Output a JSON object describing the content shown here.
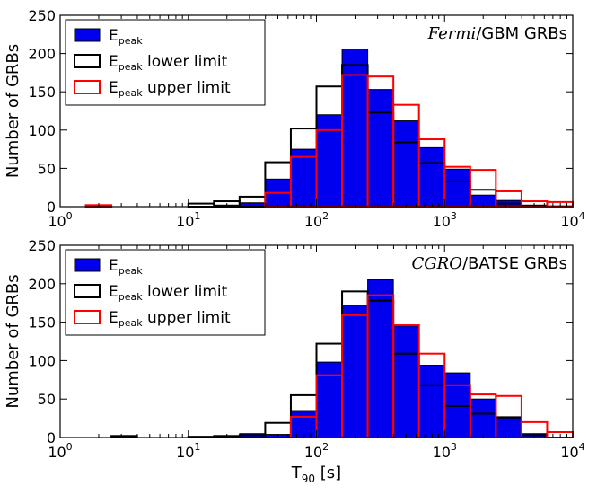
{
  "chart_data": [
    {
      "type": "bar",
      "title": "",
      "annotation": {
        "italic": "Fermi",
        "rest": "/GBM GRBs"
      },
      "xlabel": "",
      "ylabel": "Number of GRBs",
      "xscale": "log",
      "xlim": [
        1,
        10000
      ],
      "ylim": [
        0,
        250
      ],
      "x_ticks": [
        {
          "base": "10",
          "exp": "0"
        },
        {
          "base": "10",
          "exp": "1"
        },
        {
          "base": "10",
          "exp": "2"
        },
        {
          "base": "10",
          "exp": "3"
        },
        {
          "base": "10",
          "exp": "4"
        }
      ],
      "y_ticks": [
        "0",
        "50",
        "100",
        "150",
        "200",
        "250"
      ],
      "bin_edges_log10": [
        0,
        0.2,
        0.4,
        0.6,
        0.8,
        1.0,
        1.2,
        1.4,
        1.6,
        1.8,
        2.0,
        2.2,
        2.4,
        2.6,
        2.8,
        3.0,
        3.2,
        3.4,
        3.6,
        3.8,
        4.0
      ],
      "legend": {
        "position": "upper left",
        "entries": [
          {
            "main": "E",
            "sub": "peak",
            "rest": ""
          },
          {
            "main": "E",
            "sub": "peak",
            "rest": " lower limit"
          },
          {
            "main": "E",
            "sub": "peak",
            "rest": " upper limit"
          }
        ]
      },
      "series": [
        {
          "name": "Epeak",
          "style": "filled",
          "color": "#0000ee",
          "values": [
            0,
            0,
            0,
            0,
            0,
            0,
            2,
            5,
            36,
            75,
            120,
            206,
            153,
            112,
            77,
            49,
            15,
            8,
            2,
            1
          ]
        },
        {
          "name": "Epeak lower limit",
          "style": "step",
          "color": "#000000",
          "values": [
            0,
            0,
            0,
            0,
            0,
            4,
            7,
            13,
            58,
            102,
            157,
            185,
            123,
            84,
            57,
            33,
            22,
            4,
            0,
            0
          ]
        },
        {
          "name": "Epeak upper limit",
          "style": "step",
          "color": "#ff0000",
          "values": [
            0,
            2,
            0,
            0,
            0,
            0,
            0,
            0,
            18,
            65,
            100,
            172,
            170,
            133,
            88,
            52,
            48,
            20,
            7,
            6
          ]
        }
      ]
    },
    {
      "type": "bar",
      "title": "",
      "annotation": {
        "italic": "CGRO",
        "rest": "/BATSE GRBs"
      },
      "xlabel": {
        "main": "T",
        "sub": "90",
        "rest": " [s]"
      },
      "ylabel": "Number of GRBs",
      "xscale": "log",
      "xlim": [
        1,
        10000
      ],
      "ylim": [
        0,
        250
      ],
      "x_ticks": [
        {
          "base": "10",
          "exp": "0"
        },
        {
          "base": "10",
          "exp": "1"
        },
        {
          "base": "10",
          "exp": "2"
        },
        {
          "base": "10",
          "exp": "3"
        },
        {
          "base": "10",
          "exp": "4"
        }
      ],
      "y_ticks": [
        "0",
        "50",
        "100",
        "150",
        "200",
        "250"
      ],
      "bin_edges_log10": [
        0,
        0.2,
        0.4,
        0.6,
        0.8,
        1.0,
        1.2,
        1.4,
        1.6,
        1.8,
        2.0,
        2.2,
        2.4,
        2.6,
        2.8,
        3.0,
        3.2,
        3.4,
        3.6,
        3.8,
        4.0
      ],
      "legend": {
        "position": "upper left",
        "entries": [
          {
            "main": "E",
            "sub": "peak",
            "rest": ""
          },
          {
            "main": "E",
            "sub": "peak",
            "rest": " lower limit"
          },
          {
            "main": "E",
            "sub": "peak",
            "rest": " upper limit"
          }
        ]
      },
      "series": [
        {
          "name": "Epeak",
          "style": "filled",
          "color": "#0000ee",
          "values": [
            0,
            0,
            1,
            0,
            0,
            1,
            1,
            5,
            4,
            35,
            98,
            172,
            205,
            145,
            94,
            84,
            50,
            27,
            5,
            0
          ]
        },
        {
          "name": "Epeak lower limit",
          "style": "step",
          "color": "#000000",
          "values": [
            0,
            0,
            2,
            0,
            0,
            1,
            2,
            3,
            19,
            55,
            122,
            190,
            178,
            109,
            68,
            41,
            31,
            26,
            3,
            0
          ]
        },
        {
          "name": "Epeak upper limit",
          "style": "step",
          "color": "#ff0000",
          "values": [
            0,
            0,
            0,
            0,
            0,
            0,
            0,
            0,
            0,
            27,
            81,
            159,
            185,
            146,
            109,
            68,
            56,
            54,
            20,
            7
          ]
        }
      ]
    }
  ]
}
